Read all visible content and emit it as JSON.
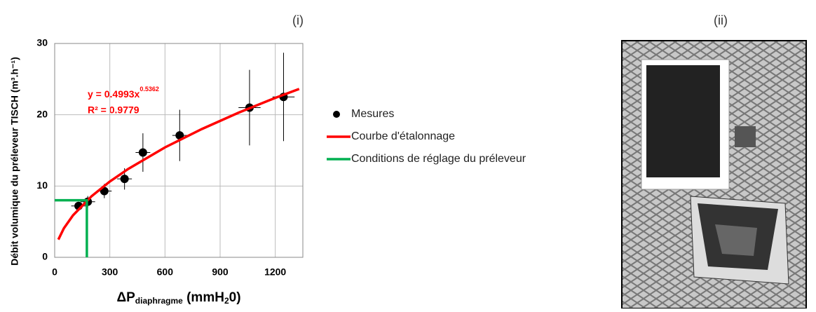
{
  "panel_labels": [
    "(i)",
    "(ii)"
  ],
  "chart_data": {
    "type": "scatter",
    "y_label": "Débit volumique du préleveur  TISCH (m³.h⁻¹)",
    "x_label": [
      "ΔP",
      "diaphragme",
      " (mmH",
      "2",
      "0)"
    ],
    "equation": "y = 0.4993x",
    "equation_exp": "0.5362",
    "r2": "R² = 0.9779",
    "xlim": [
      0,
      1350
    ],
    "ylim": [
      0,
      30
    ],
    "xticks": [
      0,
      300,
      600,
      900,
      1200
    ],
    "yticks": [
      0,
      10,
      20,
      30
    ],
    "grid": true,
    "series": [
      {
        "name": "Mesures",
        "type": "scatter",
        "color": "#000000",
        "x": [
          130,
          180,
          270,
          380,
          480,
          680,
          1060,
          1245
        ],
        "values": [
          7.2,
          7.8,
          9.3,
          11.0,
          14.7,
          17.1,
          21.0,
          22.5
        ],
        "yerr": [
          0.5,
          0.8,
          1.0,
          1.5,
          2.7,
          3.6,
          5.3,
          6.2
        ],
        "xerr": [
          40,
          40,
          40,
          40,
          40,
          40,
          60,
          60
        ]
      },
      {
        "name": "Courbe d'étalonnage",
        "type": "line",
        "color": "#ff0000",
        "x": [
          20,
          50,
          100,
          200,
          300,
          400,
          600,
          800,
          1000,
          1200,
          1330
        ],
        "values": [
          2.49,
          4.07,
          5.9,
          8.55,
          10.63,
          12.4,
          15.42,
          17.99,
          20.29,
          22.37,
          23.62
        ]
      },
      {
        "name": "Conditions de réglage du préleveur",
        "type": "line",
        "color": "#00b050",
        "x": [
          0,
          175,
          175
        ],
        "values": [
          8,
          8,
          0
        ]
      }
    ]
  }
}
